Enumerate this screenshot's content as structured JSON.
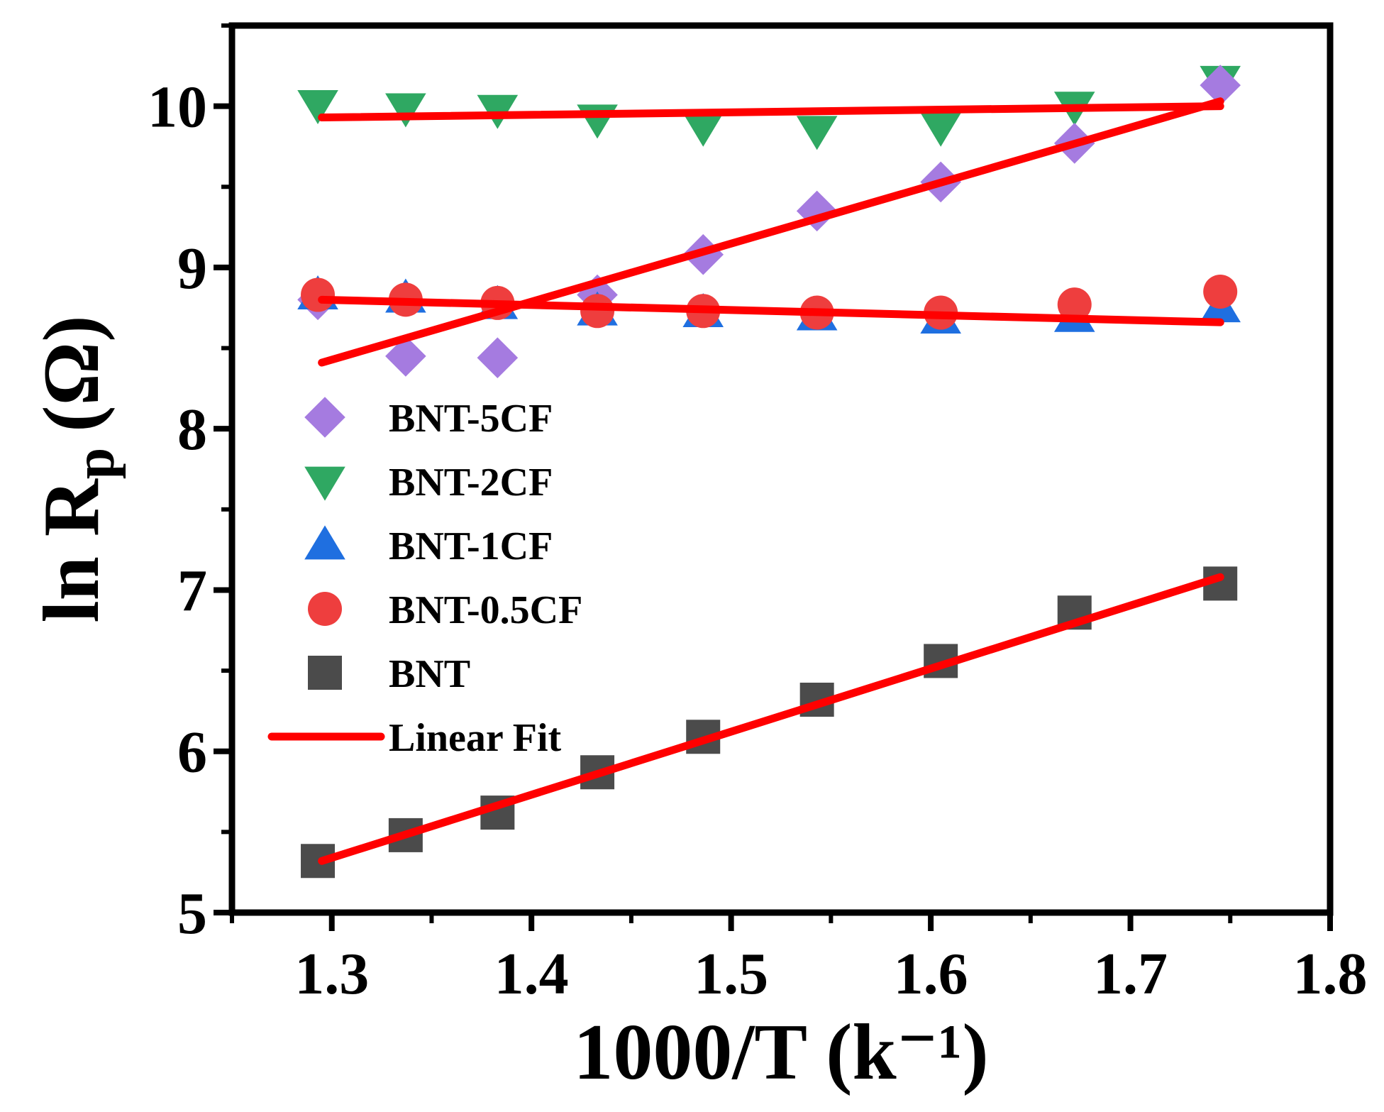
{
  "chart_data": {
    "type": "scatter",
    "xlabel": "1000/T (k⁻¹)",
    "ylabel_main": "ln R",
    "ylabel_sub": "p",
    "ylabel_unit": "(Ω)",
    "xlim": [
      1.25,
      1.8
    ],
    "ylim": [
      5,
      10.5
    ],
    "xticks": [
      1.3,
      1.4,
      1.5,
      1.6,
      1.7,
      1.8
    ],
    "xtick_labels": [
      "1.3",
      "1.4",
      "1.5",
      "1.6",
      "1.7",
      "1.8"
    ],
    "yticks": [
      5,
      6,
      7,
      8,
      9,
      10
    ],
    "ytick_labels": [
      "5",
      "6",
      "7",
      "8",
      "9",
      "10"
    ],
    "x": [
      1.293,
      1.337,
      1.383,
      1.433,
      1.486,
      1.543,
      1.605,
      1.672,
      1.745
    ],
    "series": [
      {
        "name": "BNT-5CF",
        "marker": "diamond",
        "color": "#a57be0",
        "values": [
          8.8,
          8.45,
          8.44,
          8.83,
          9.08,
          9.35,
          9.53,
          9.77,
          10.13
        ]
      },
      {
        "name": "BNT-2CF",
        "marker": "triangle-down",
        "color": "#2fa862",
        "values": [
          10.01,
          9.99,
          9.98,
          9.92,
          9.87,
          9.85,
          9.87,
          10.0,
          10.16
        ]
      },
      {
        "name": "BNT-1CF",
        "marker": "triangle-up",
        "color": "#1f6fe0",
        "values": [
          8.83,
          8.81,
          8.77,
          8.73,
          8.72,
          8.7,
          8.68,
          8.69,
          8.75
        ]
      },
      {
        "name": "BNT-0.5CF",
        "marker": "circle",
        "color": "#ee3e3e",
        "values": [
          8.83,
          8.8,
          8.78,
          8.73,
          8.73,
          8.72,
          8.72,
          8.77,
          8.85
        ]
      },
      {
        "name": "BNT",
        "marker": "square",
        "color": "#4b4b4b",
        "values": [
          5.32,
          5.48,
          5.62,
          5.87,
          6.09,
          6.32,
          6.56,
          6.86,
          7.04
        ]
      }
    ],
    "fits": [
      {
        "name": "BNT-5CF fit",
        "x": [
          1.295,
          1.745
        ],
        "y": [
          8.41,
          10.03
        ]
      },
      {
        "name": "BNT-2CF fit",
        "x": [
          1.295,
          1.745
        ],
        "y": [
          9.93,
          10.0
        ]
      },
      {
        "name": "BNT-1CF/0.5CF fit",
        "x": [
          1.295,
          1.745
        ],
        "y": [
          8.8,
          8.66
        ]
      },
      {
        "name": "BNT fit",
        "x": [
          1.295,
          1.745
        ],
        "y": [
          5.32,
          7.08
        ]
      }
    ],
    "fit_color": "#ff0000",
    "legend": {
      "position": "left-center",
      "entries": [
        "BNT-5CF",
        "BNT-2CF",
        "BNT-1CF",
        "BNT-0.5CF",
        "BNT",
        "Linear Fit"
      ]
    }
  }
}
